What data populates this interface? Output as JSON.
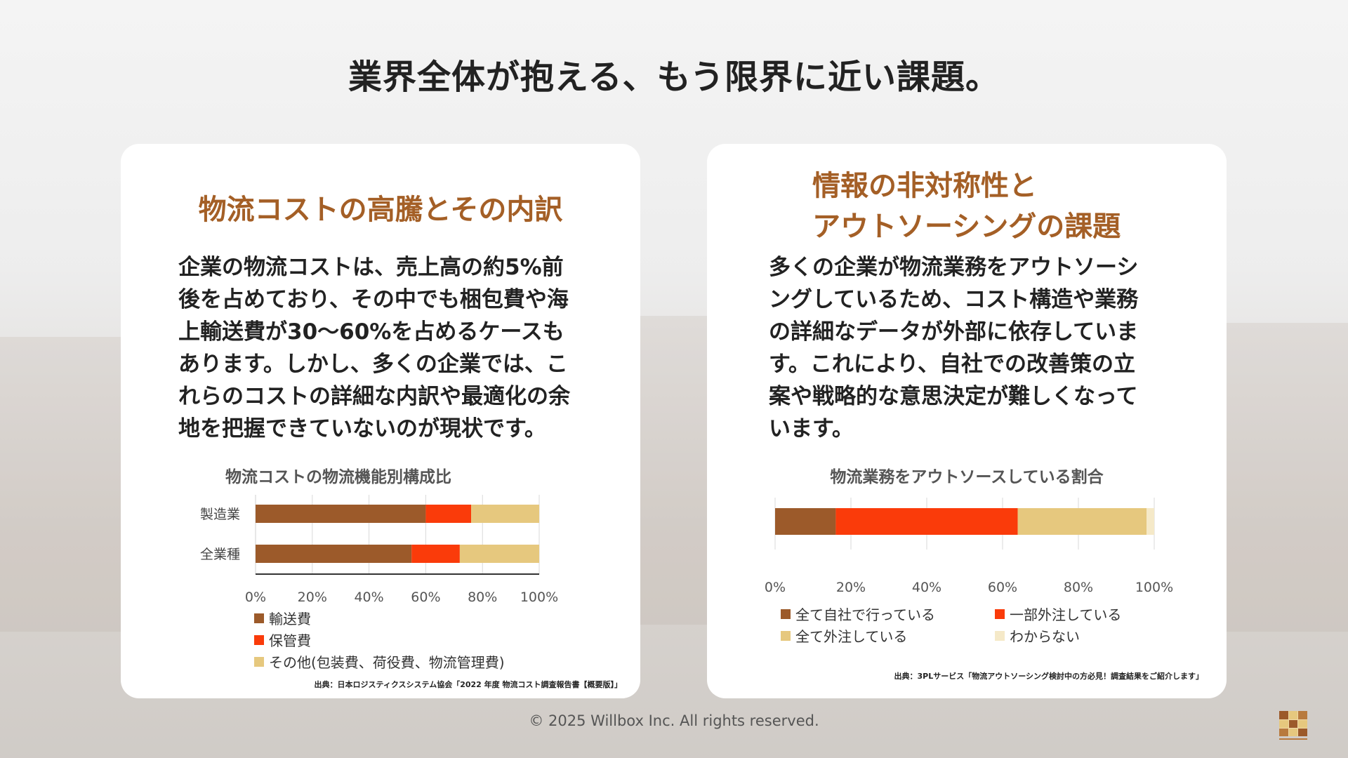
{
  "page": {
    "title": "業界全体が抱える、もう限界に近い課題。",
    "footer": "© 2025 Willbox Inc. All rights reserved.",
    "logo_name": "WILLBOX"
  },
  "left_card": {
    "heading": "物流コストの高騰とその内訳",
    "body_lines": [
      "企業の物流コストは、売上高の約5%前",
      "後を占めており、その中でも梱包費や海",
      "上輸送費が30〜60%を占めるケースも",
      "あります。しかし、多くの企業では、こ",
      "れらのコストの詳細な内訳や最適化の余",
      "地を把握できていないのが現状です。"
    ],
    "source": "出典：日本ロジスティクスシステム協会「2022 年度 物流コスト調査報告書【概要版】」"
  },
  "right_card": {
    "heading_lines": [
      "情報の非対称性と",
      "アウトソーシングの課題"
    ],
    "body_lines": [
      "多くの企業が物流業務をアウトソーシ",
      "ングしているため、コスト構造や業務",
      "の詳細なデータが外部に依存していま",
      "す。これにより、自社での改善策の立",
      "案や戦略的な意思決定が難しくなって",
      "います。"
    ],
    "source": "出典：3PLサービス「物流アウトソーシング検討中の方必見！調査結果をご紹介します」"
  },
  "colors": {
    "brown": "#9c5a2a",
    "red": "#fa3b0a",
    "beige": "#e6c87e",
    "cream": "#f5e9c8",
    "heading": "#a45f26"
  },
  "chart_data": [
    {
      "type": "bar",
      "orientation": "horizontal-stacked",
      "title": "物流コストの物流機能別構成比",
      "categories": [
        "製造業",
        "全業種"
      ],
      "series": [
        {
          "name": "輸送費",
          "values": [
            60,
            55
          ],
          "color": "#9c5a2a"
        },
        {
          "name": "保管費",
          "values": [
            16,
            17
          ],
          "color": "#fa3b0a"
        },
        {
          "name": "その他(包装費、荷役費、物流管理費)",
          "values": [
            24,
            28
          ],
          "color": "#e6c87e"
        }
      ],
      "xlim": [
        0,
        100
      ],
      "xticks": [
        "0%",
        "20%",
        "40%",
        "60%",
        "80%",
        "100%"
      ],
      "grid": true,
      "legend": "bottom-left"
    },
    {
      "type": "bar",
      "orientation": "horizontal-stacked",
      "title": "物流業務をアウトソースしている割合",
      "categories": [
        ""
      ],
      "series": [
        {
          "name": "全て自社で行っている",
          "values": [
            16
          ],
          "color": "#9c5a2a"
        },
        {
          "name": "一部外注している",
          "values": [
            48
          ],
          "color": "#fa3b0a"
        },
        {
          "name": "全て外注している",
          "values": [
            34
          ],
          "color": "#e6c87e"
        },
        {
          "name": "わからない",
          "values": [
            2
          ],
          "color": "#f5e9c8"
        }
      ],
      "xlim": [
        0,
        100
      ],
      "xticks": [
        "0%",
        "20%",
        "40%",
        "60%",
        "80%",
        "100%"
      ],
      "grid": true,
      "legend": "bottom"
    }
  ]
}
